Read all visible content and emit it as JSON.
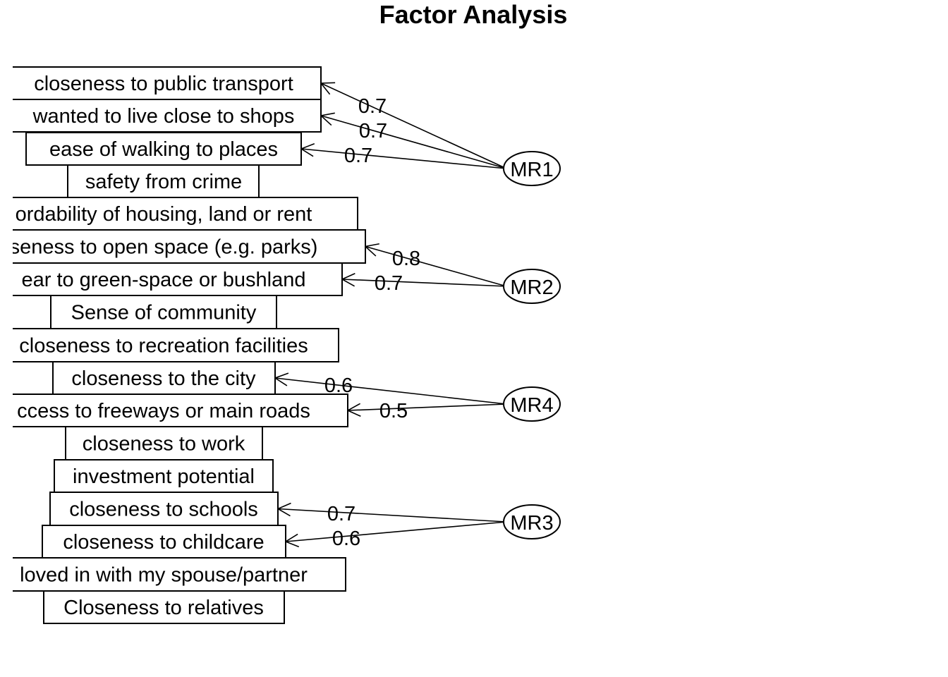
{
  "title": "Factor Analysis",
  "variables": [
    {
      "id": "v1",
      "label": "closeness to public transport"
    },
    {
      "id": "v2",
      "label": "wanted to live close to shops"
    },
    {
      "id": "v3",
      "label": "ease of walking to places"
    },
    {
      "id": "v4",
      "label": "safety from crime"
    },
    {
      "id": "v5",
      "label": "ordability of housing, land or rent"
    },
    {
      "id": "v6",
      "label": "seness to open space (e.g. parks)"
    },
    {
      "id": "v7",
      "label": "ear to green-space or bushland"
    },
    {
      "id": "v8",
      "label": "Sense of community"
    },
    {
      "id": "v9",
      "label": "closeness to recreation facilities"
    },
    {
      "id": "v10",
      "label": "closeness to the city"
    },
    {
      "id": "v11",
      "label": "ccess to freeways or main roads"
    },
    {
      "id": "v12",
      "label": "closeness to work"
    },
    {
      "id": "v13",
      "label": "investment potential"
    },
    {
      "id": "v14",
      "label": "closeness to schools"
    },
    {
      "id": "v15",
      "label": "closeness to childcare"
    },
    {
      "id": "v16",
      "label": "loved in with my spouse/partner"
    },
    {
      "id": "v17",
      "label": "Closeness to relatives"
    }
  ],
  "factors": [
    {
      "id": "MR1",
      "label": "MR1"
    },
    {
      "id": "MR2",
      "label": "MR2"
    },
    {
      "id": "MR4",
      "label": "MR4"
    },
    {
      "id": "MR3",
      "label": "MR3"
    }
  ],
  "loadings": [
    {
      "from": "MR1",
      "to": "v1",
      "value": "0.7"
    },
    {
      "from": "MR1",
      "to": "v2",
      "value": "0.7"
    },
    {
      "from": "MR1",
      "to": "v3",
      "value": "0.7"
    },
    {
      "from": "MR2",
      "to": "v6",
      "value": "0.8"
    },
    {
      "from": "MR2",
      "to": "v7",
      "value": "0.7"
    },
    {
      "from": "MR4",
      "to": "v10",
      "value": "0.6"
    },
    {
      "from": "MR4",
      "to": "v11",
      "value": "0.5"
    },
    {
      "from": "MR3",
      "to": "v14",
      "value": "0.7"
    },
    {
      "from": "MR3",
      "to": "v15",
      "value": "0.6"
    }
  ]
}
